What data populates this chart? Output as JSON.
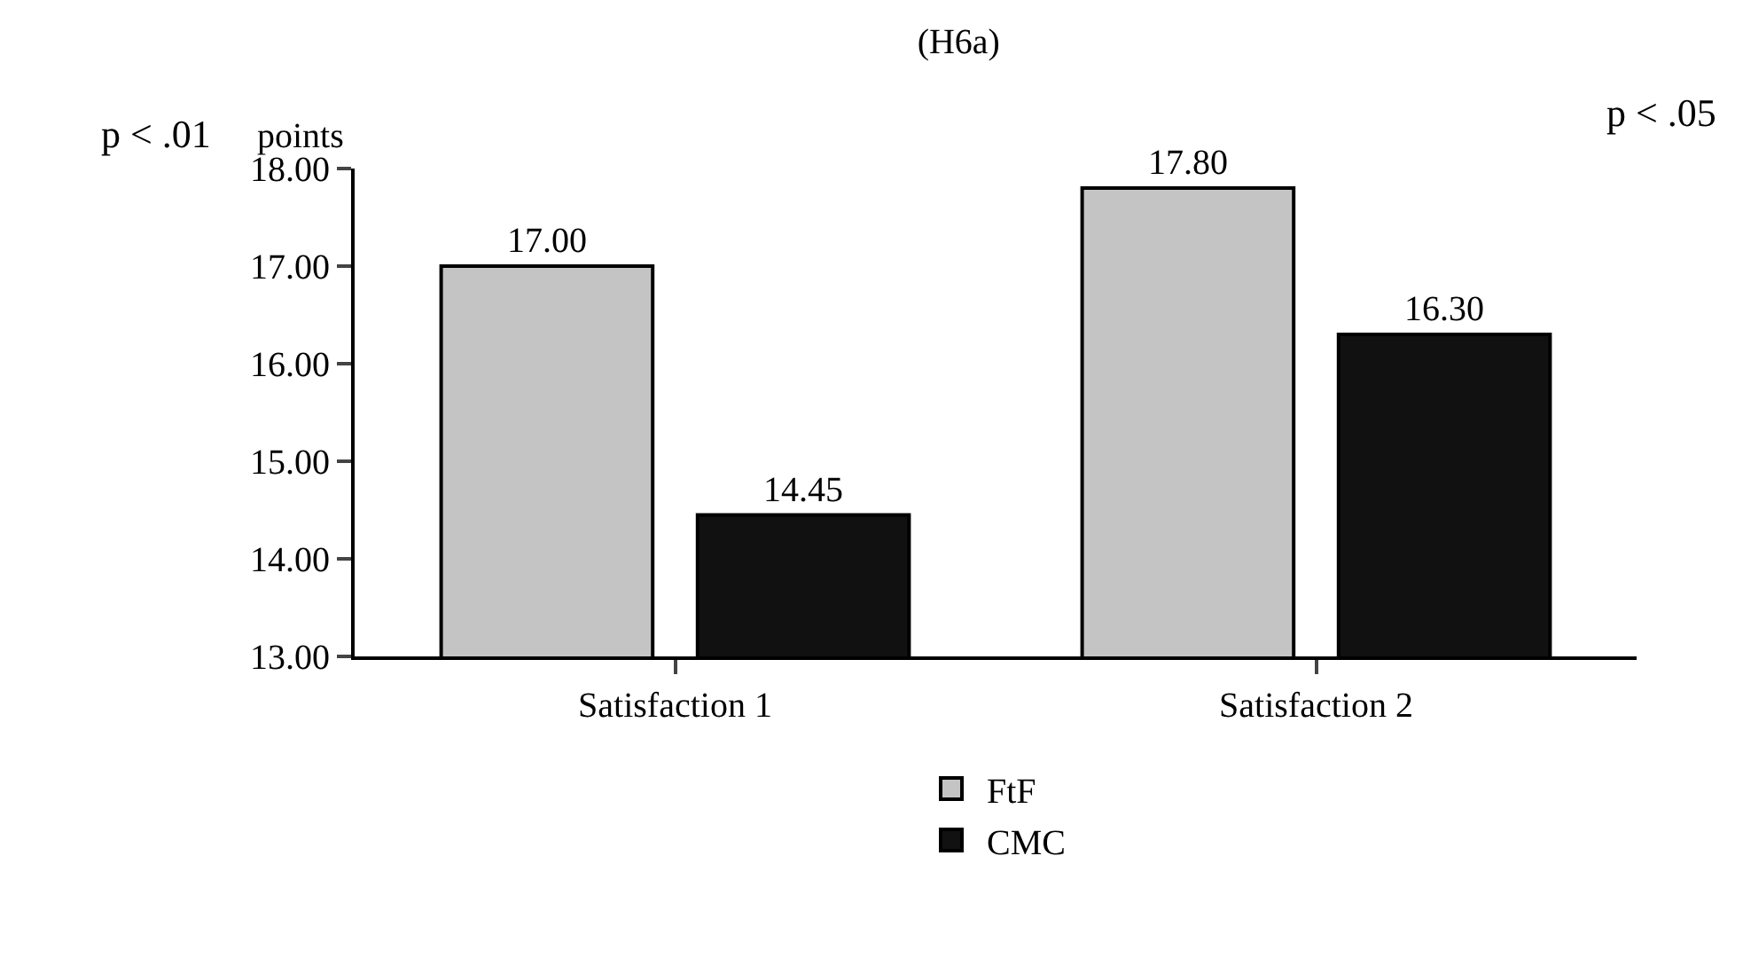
{
  "chart_data": {
    "type": "bar",
    "title": "(H6a)",
    "ylabel": "points",
    "categories": [
      "Satisfaction 1",
      "Satisfaction 2"
    ],
    "series": [
      {
        "name": "FtF",
        "color": "#c4c4c4",
        "values": [
          17.0,
          17.8
        ],
        "value_labels": [
          "17.00",
          "17.80"
        ]
      },
      {
        "name": "CMC",
        "color": "#111111",
        "values": [
          14.45,
          16.3
        ],
        "value_labels": [
          "14.45",
          "16.30"
        ]
      }
    ],
    "ylim": [
      13,
      18
    ],
    "yticks": [
      {
        "value": 13,
        "label": "13.00"
      },
      {
        "value": 14,
        "label": "14.00"
      },
      {
        "value": 15,
        "label": "15.00"
      },
      {
        "value": 16,
        "label": "16.00"
      },
      {
        "value": 17,
        "label": "17.00"
      },
      {
        "value": 18,
        "label": "18.00"
      }
    ],
    "annotations": [
      "p < .01",
      "p < .05"
    ],
    "legend": "bottom",
    "grid": false
  }
}
